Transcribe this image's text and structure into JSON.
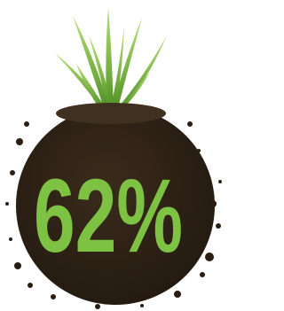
{
  "stat": {
    "label": "62%"
  }
}
